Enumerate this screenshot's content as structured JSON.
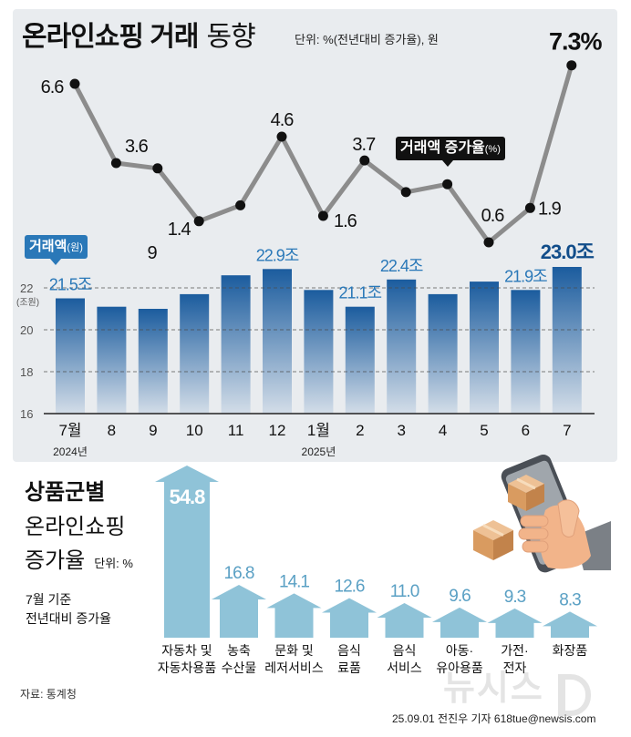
{
  "header": {
    "title_bold": "온라인쇼핑 거래",
    "title_light": "동향",
    "unit": "단위: %(전년대비 증가율), 원"
  },
  "colors": {
    "panel_bg": "#e9ecef",
    "line": "#8c8c8c",
    "point": "#111111",
    "bar_top": "#1b5c9e",
    "bar_bottom": "#d3dde8",
    "bar_label": "#2a78b8",
    "bar_label_strong": "#114d8a",
    "amount_legend": "#2a78b8",
    "growth_legend": "#111111",
    "category_arrow": "#8fc3d8",
    "category_value": "#5aa0c4",
    "watermark": "#e4e4e4"
  },
  "chart_data": [
    {
      "type": "bar",
      "categories": [
        "7월",
        "8",
        "9",
        "10",
        "11",
        "12",
        "1월",
        "2",
        "3",
        "4",
        "5",
        "6",
        "7"
      ],
      "year_labels": [
        {
          "index": 0,
          "text": "2024년"
        },
        {
          "index": 6,
          "text": "2025년"
        }
      ],
      "ylim": [
        16,
        24
      ],
      "yticks": [
        16,
        18,
        20,
        22
      ],
      "ylabel": "(조원)",
      "grid": true,
      "series": [
        {
          "name": "거래액",
          "unit": "(원)",
          "type": "bar",
          "values": [
            21.5,
            21.1,
            21.0,
            21.7,
            22.6,
            22.9,
            21.9,
            21.1,
            22.4,
            21.7,
            22.3,
            21.9,
            23.0
          ],
          "data_labels": [
            "21.5조",
            "",
            "",
            "",
            "",
            "22.9조",
            "",
            "21.1조",
            "22.4조",
            "",
            "",
            "21.9조",
            "23.0조"
          ]
        },
        {
          "name": "거래액 증가율",
          "unit": "(%)",
          "type": "line",
          "values": [
            6.6,
            3.6,
            3.4,
            1.4,
            2.0,
            4.6,
            1.6,
            3.7,
            2.5,
            2.8,
            0.6,
            1.9,
            7.3
          ],
          "data_labels": [
            "6.6",
            "3.6",
            "",
            "1.4",
            "",
            "4.6",
            "1.6",
            "3.7",
            "",
            "",
            "0.6",
            "1.9",
            "7.3%"
          ],
          "extra_labels": [
            "9"
          ]
        }
      ]
    },
    {
      "type": "bar",
      "categories": [
        [
          "자동차 및",
          "자동차용품"
        ],
        [
          "농축",
          "수산물"
        ],
        [
          "문화 및",
          "레저서비스"
        ],
        [
          "음식",
          "료품"
        ],
        [
          "음식",
          "서비스"
        ],
        [
          "아동·",
          "유아용품"
        ],
        [
          "가전·",
          "전자"
        ],
        [
          "화장품"
        ]
      ],
      "values": [
        54.8,
        16.8,
        14.1,
        12.6,
        11.0,
        9.6,
        9.3,
        8.3
      ],
      "data_labels": [
        "54.8",
        "16.8",
        "14.1",
        "12.6",
        "11.0",
        "9.6",
        "9.3",
        "8.3"
      ]
    }
  ],
  "category_section": {
    "title_line1": "상품군별",
    "title_line2": "온라인쇼핑",
    "title_line3": "증가율",
    "unit": "단위: %",
    "note_line1": "7월 기준",
    "note_line2": "전년대비 증가율"
  },
  "footer": {
    "source": "자료: 통계청",
    "credit": "25.09.01 전진우 기자 618tue@newsis.com",
    "watermark": "뉴시스"
  }
}
